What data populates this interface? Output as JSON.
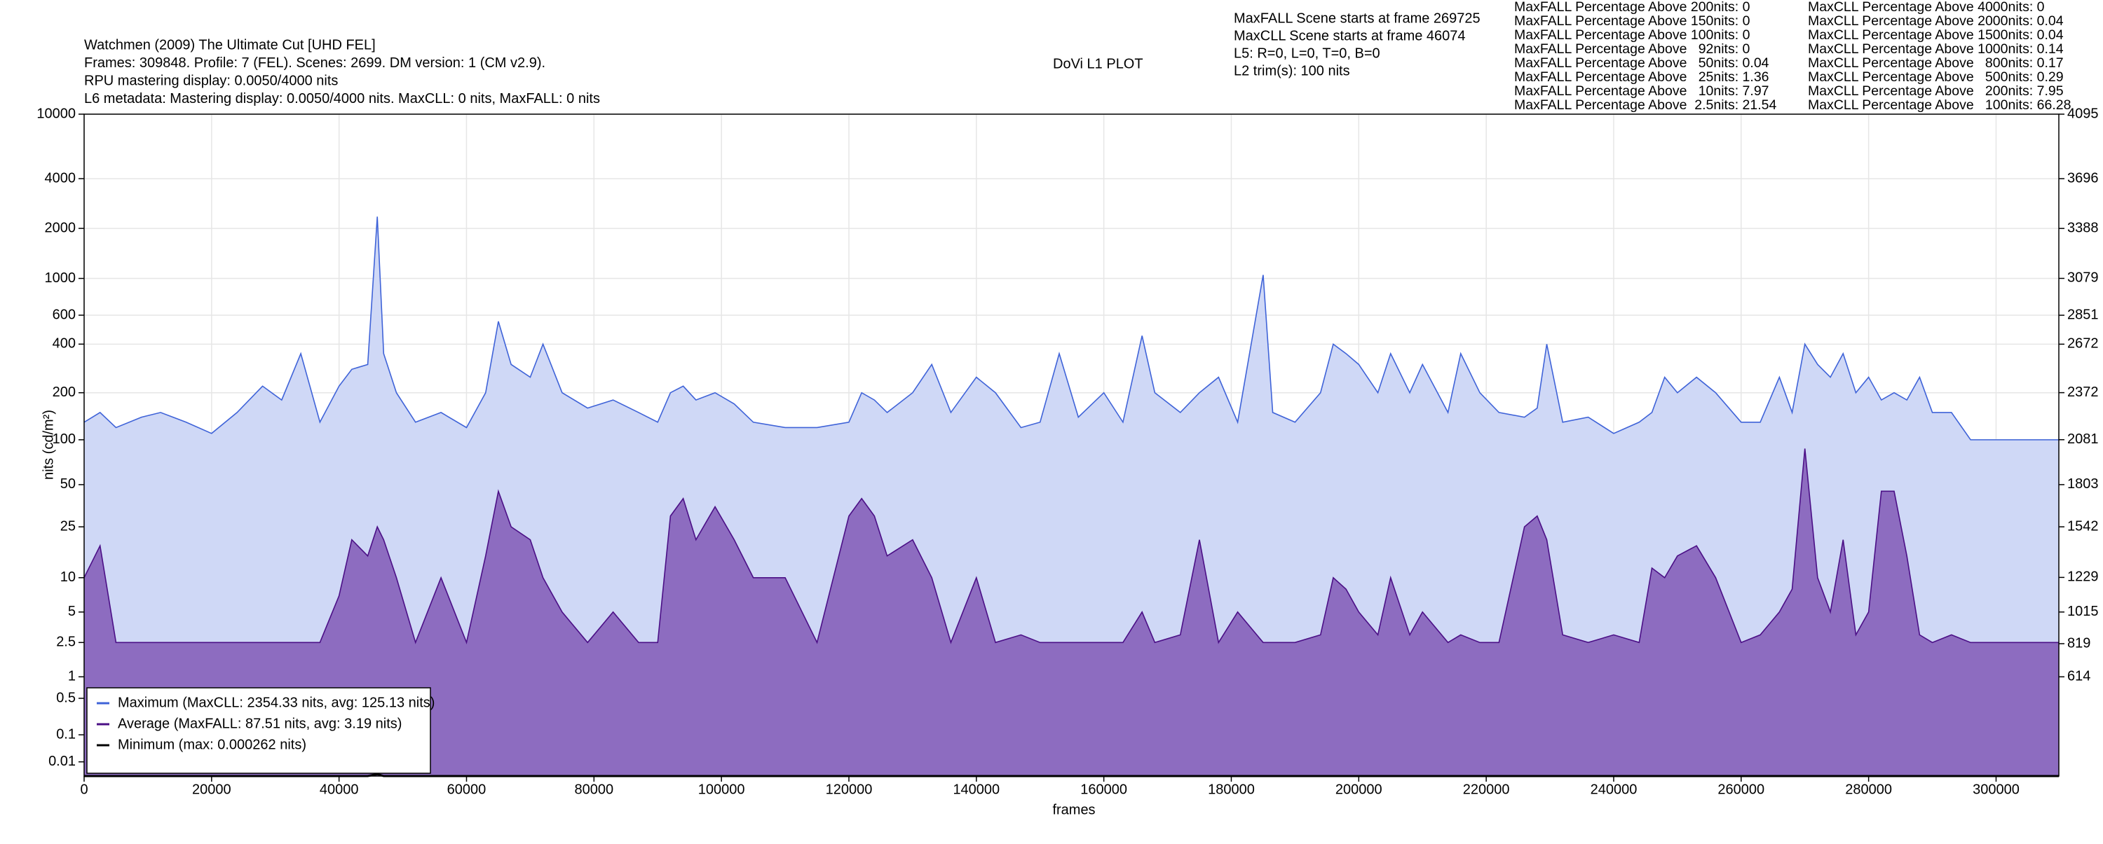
{
  "chart_data": {
    "type": "line",
    "title": "DoVi L1 PLOT",
    "info": [
      "Watchmen (2009) The Ultimate Cut [UHD FEL]",
      "Frames: 309848. Profile: 7 (FEL). Scenes: 2699. DM version: 1 (CM v2.9).",
      "RPU mastering display: 0.0050/4000 nits",
      "L6 metadata: Mastering display: 0.0050/4000 nits. MaxCLL: 0 nits, MaxFALL: 0 nits"
    ],
    "scene_info": [
      "MaxFALL Scene starts at frame 269725",
      "MaxCLL Scene starts at frame 46074",
      "L5: R=0, L=0, T=0, B=0",
      "L2 trim(s): 100 nits"
    ],
    "stats": [
      [
        "MaxFALL Percentage Above 200nits: 0",
        "MaxFALL Percentage Above 150nits: 0",
        "MaxFALL Percentage Above 100nits: 0",
        "MaxFALL Percentage Above   92nits: 0",
        "MaxFALL Percentage Above   50nits: 0.04",
        "MaxFALL Percentage Above   25nits: 1.36",
        "MaxFALL Percentage Above   10nits: 7.97",
        "MaxFALL Percentage Above  2.5nits: 21.54"
      ],
      [
        "MaxCLL Percentage Above 4000nits: 0",
        "MaxCLL Percentage Above 2000nits: 0.04",
        "MaxCLL Percentage Above 1500nits: 0.04",
        "MaxCLL Percentage Above 1000nits: 0.14",
        "MaxCLL Percentage Above   800nits: 0.17",
        "MaxCLL Percentage Above   500nits: 0.29",
        "MaxCLL Percentage Above   200nits: 7.95",
        "MaxCLL Percentage Above   100nits: 66.28"
      ]
    ],
    "x_label": "frames",
    "y_label": "nits (cd/m²)",
    "yscale": "pq",
    "grid": true,
    "legend": "lower left",
    "xlim": [
      0,
      309848
    ],
    "xticks": [
      0,
      20000,
      40000,
      60000,
      80000,
      100000,
      120000,
      140000,
      160000,
      180000,
      200000,
      220000,
      240000,
      260000,
      280000,
      300000
    ],
    "ylim": [
      0,
      10000
    ],
    "yticks": [
      0.01,
      0.1,
      0.5,
      1,
      2.5,
      5,
      10,
      25,
      50,
      100,
      200,
      400,
      600,
      1000,
      2000,
      4000,
      10000
    ],
    "y2lim": [
      0,
      4095
    ],
    "y2ticks": [
      614,
      819,
      1015,
      1229,
      1542,
      1803,
      2081,
      2372,
      2672,
      2851,
      3079,
      3388,
      3696,
      4095
    ],
    "x": [
      0,
      2500,
      5000,
      9000,
      12000,
      16000,
      20000,
      24000,
      28000,
      31000,
      34000,
      37000,
      40000,
      42000,
      44500,
      46000,
      47000,
      49000,
      52000,
      56000,
      60000,
      63000,
      65000,
      67000,
      70000,
      72000,
      75000,
      79000,
      83000,
      87000,
      90000,
      92000,
      94000,
      96000,
      99000,
      102000,
      105000,
      110000,
      115000,
      120000,
      122000,
      124000,
      126000,
      130000,
      133000,
      136000,
      140000,
      143000,
      147000,
      150000,
      153000,
      156000,
      160000,
      163000,
      166000,
      168000,
      172000,
      175000,
      178000,
      181000,
      185000,
      186500,
      190000,
      194000,
      196000,
      198000,
      200000,
      203000,
      205000,
      208000,
      210000,
      214000,
      216000,
      219000,
      222000,
      226000,
      228000,
      229500,
      232000,
      236000,
      240000,
      244000,
      246000,
      248000,
      250000,
      253000,
      256000,
      260000,
      263000,
      266000,
      268000,
      270000,
      272000,
      274000,
      276000,
      278000,
      280000,
      282000,
      284000,
      286000,
      288000,
      290000,
      293000,
      296000,
      300000,
      309848
    ],
    "series": [
      {
        "name": "Maximum (MaxCLL: 2354.33 nits, avg: 125.13 nits)",
        "color": "#3f63d8",
        "fill": "#cfd8f6",
        "values": [
          130,
          150,
          120,
          140,
          150,
          130,
          110,
          150,
          220,
          180,
          350,
          130,
          220,
          280,
          300,
          2354.33,
          350,
          200,
          130,
          150,
          120,
          200,
          550,
          300,
          250,
          400,
          200,
          160,
          180,
          150,
          130,
          200,
          220,
          180,
          200,
          170,
          130,
          120,
          120,
          130,
          200,
          180,
          150,
          200,
          300,
          150,
          250,
          200,
          120,
          130,
          350,
          140,
          200,
          130,
          450,
          200,
          150,
          200,
          250,
          130,
          1050,
          150,
          130,
          200,
          400,
          350,
          300,
          200,
          350,
          200,
          300,
          150,
          350,
          200,
          150,
          140,
          160,
          400,
          130,
          140,
          110,
          130,
          150,
          250,
          200,
          250,
          200,
          130,
          130,
          250,
          150,
          400,
          300,
          250,
          350,
          200,
          250,
          180,
          200,
          180,
          250,
          150,
          150,
          100,
          100,
          100
        ]
      },
      {
        "name": "Average (MaxFALL: 87.51 nits, avg: 3.19 nits)",
        "color": "#4b0f86",
        "fill": "#8d6cc0",
        "values": [
          10,
          18,
          2.5,
          2.5,
          2.5,
          2.5,
          2.5,
          2.5,
          2.5,
          2.5,
          2.5,
          2.5,
          7,
          20,
          15,
          25,
          20,
          10,
          2.5,
          10,
          2.5,
          15,
          45,
          25,
          20,
          10,
          5,
          2.5,
          5,
          2.5,
          2.5,
          30,
          40,
          20,
          35,
          20,
          10,
          10,
          2.5,
          30,
          40,
          30,
          15,
          20,
          10,
          2.5,
          10,
          2.5,
          3,
          2.5,
          2.5,
          2.5,
          2.5,
          2.5,
          5,
          2.5,
          3,
          20,
          2.5,
          5,
          2.5,
          2.5,
          2.5,
          3,
          10,
          8,
          5,
          3,
          10,
          3,
          5,
          2.5,
          3,
          2.5,
          2.5,
          25,
          30,
          20,
          3,
          2.5,
          3,
          2.5,
          12,
          10,
          15,
          18,
          10,
          2.5,
          3,
          5,
          8,
          87.51,
          10,
          5,
          20,
          3,
          5,
          45,
          45,
          15,
          3,
          2.5,
          3,
          2.5,
          2.5,
          2.5
        ]
      },
      {
        "name": "Minimum (max: 0.000262 nits)",
        "color": "#000000",
        "values": [
          0,
          0,
          0,
          0,
          0,
          0,
          0,
          0,
          0,
          0,
          0,
          0,
          0,
          0,
          0,
          0.000262,
          0,
          0,
          0,
          0,
          0,
          0,
          0,
          0,
          0,
          0,
          0,
          0,
          0,
          0,
          0,
          0,
          0,
          0,
          0,
          0,
          0,
          0,
          0,
          0,
          0,
          0,
          0,
          0,
          0,
          0,
          0,
          0,
          0,
          0,
          0,
          0,
          0,
          0,
          0,
          0,
          0,
          0,
          0,
          0,
          0,
          0,
          0,
          0,
          0,
          0,
          0,
          0,
          0,
          0,
          0,
          0,
          0,
          0,
          0,
          0,
          0,
          0,
          0,
          0,
          0,
          0,
          0,
          0,
          0,
          0,
          0,
          0,
          0,
          0,
          0,
          0,
          0,
          0,
          0,
          0,
          0,
          0,
          0,
          0,
          0,
          0,
          0,
          0,
          0,
          0
        ]
      }
    ]
  }
}
